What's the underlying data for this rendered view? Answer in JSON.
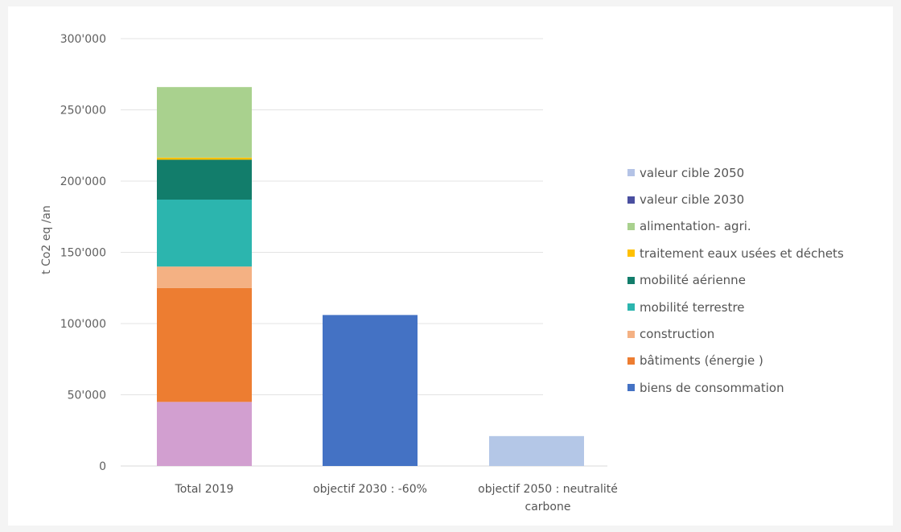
{
  "chart_data": {
    "type": "bar",
    "stacked": true,
    "ylabel": "t Co2 eq /an",
    "ylim": [
      0,
      300000
    ],
    "y_ticks": [
      "0",
      "50'000",
      "100'000",
      "150'000",
      "200'000",
      "250'000",
      "300'000"
    ],
    "y_tick_values": [
      0,
      50000,
      100000,
      150000,
      200000,
      250000,
      300000
    ],
    "categories": [
      "Total 2019",
      "objectif 2030 : -60%",
      "objectif 2050 : neutralité carbone"
    ],
    "grid": true,
    "legend_position": "right",
    "series": [
      {
        "name": "biens de consommation",
        "color": "#4472C4",
        "values": [
          45000,
          0,
          0
        ]
      },
      {
        "name": "bâtiments (énergie )",
        "color": "#ED7D31",
        "values": [
          80000,
          0,
          0
        ]
      },
      {
        "name": "construction",
        "color": "#F4B183",
        "values": [
          15000,
          0,
          0
        ]
      },
      {
        "name": "mobilité terrestre",
        "color": "#2CB5AE",
        "values": [
          47000,
          0,
          0
        ]
      },
      {
        "name": "mobilité aérienne",
        "color": "#127D6B",
        "values": [
          28000,
          0,
          0
        ]
      },
      {
        "name": "traitement eaux usées et déchets",
        "color": "#FFC000",
        "values": [
          1500,
          0,
          0
        ]
      },
      {
        "name": "alimentation- agri.",
        "color": "#A9D18E",
        "values": [
          49500,
          0,
          0
        ]
      },
      {
        "name": "valeur cible 2030",
        "color": "#4A4FA0",
        "values": [
          0,
          106000,
          0
        ]
      },
      {
        "name": "valeur cible 2050",
        "color": "#B4C3E6",
        "values": [
          0,
          0,
          21000
        ]
      }
    ],
    "bar_colors_rendered": {
      "biens de consommation (Total 2019)": "#D29FD0",
      "valeur cible 2030": "#4472C4",
      "valeur cible 2050": "#B4C7E7"
    },
    "legend": [
      {
        "label": "valeur cible 2050",
        "color": "#B4C3E6"
      },
      {
        "label": "valeur cible 2030",
        "color": "#4A4FA0"
      },
      {
        "label": "alimentation- agri.",
        "color": "#A9D18E"
      },
      {
        "label": "traitement eaux usées et déchets",
        "color": "#FFC000"
      },
      {
        "label": "mobilité aérienne",
        "color": "#127D6B"
      },
      {
        "label": "mobilité terrestre",
        "color": "#2CB5AE"
      },
      {
        "label": "construction",
        "color": "#F4B183"
      },
      {
        "label": "bâtiments (énergie )",
        "color": "#ED7D31"
      },
      {
        "label": "biens de consommation",
        "color": "#4472C4"
      }
    ]
  }
}
